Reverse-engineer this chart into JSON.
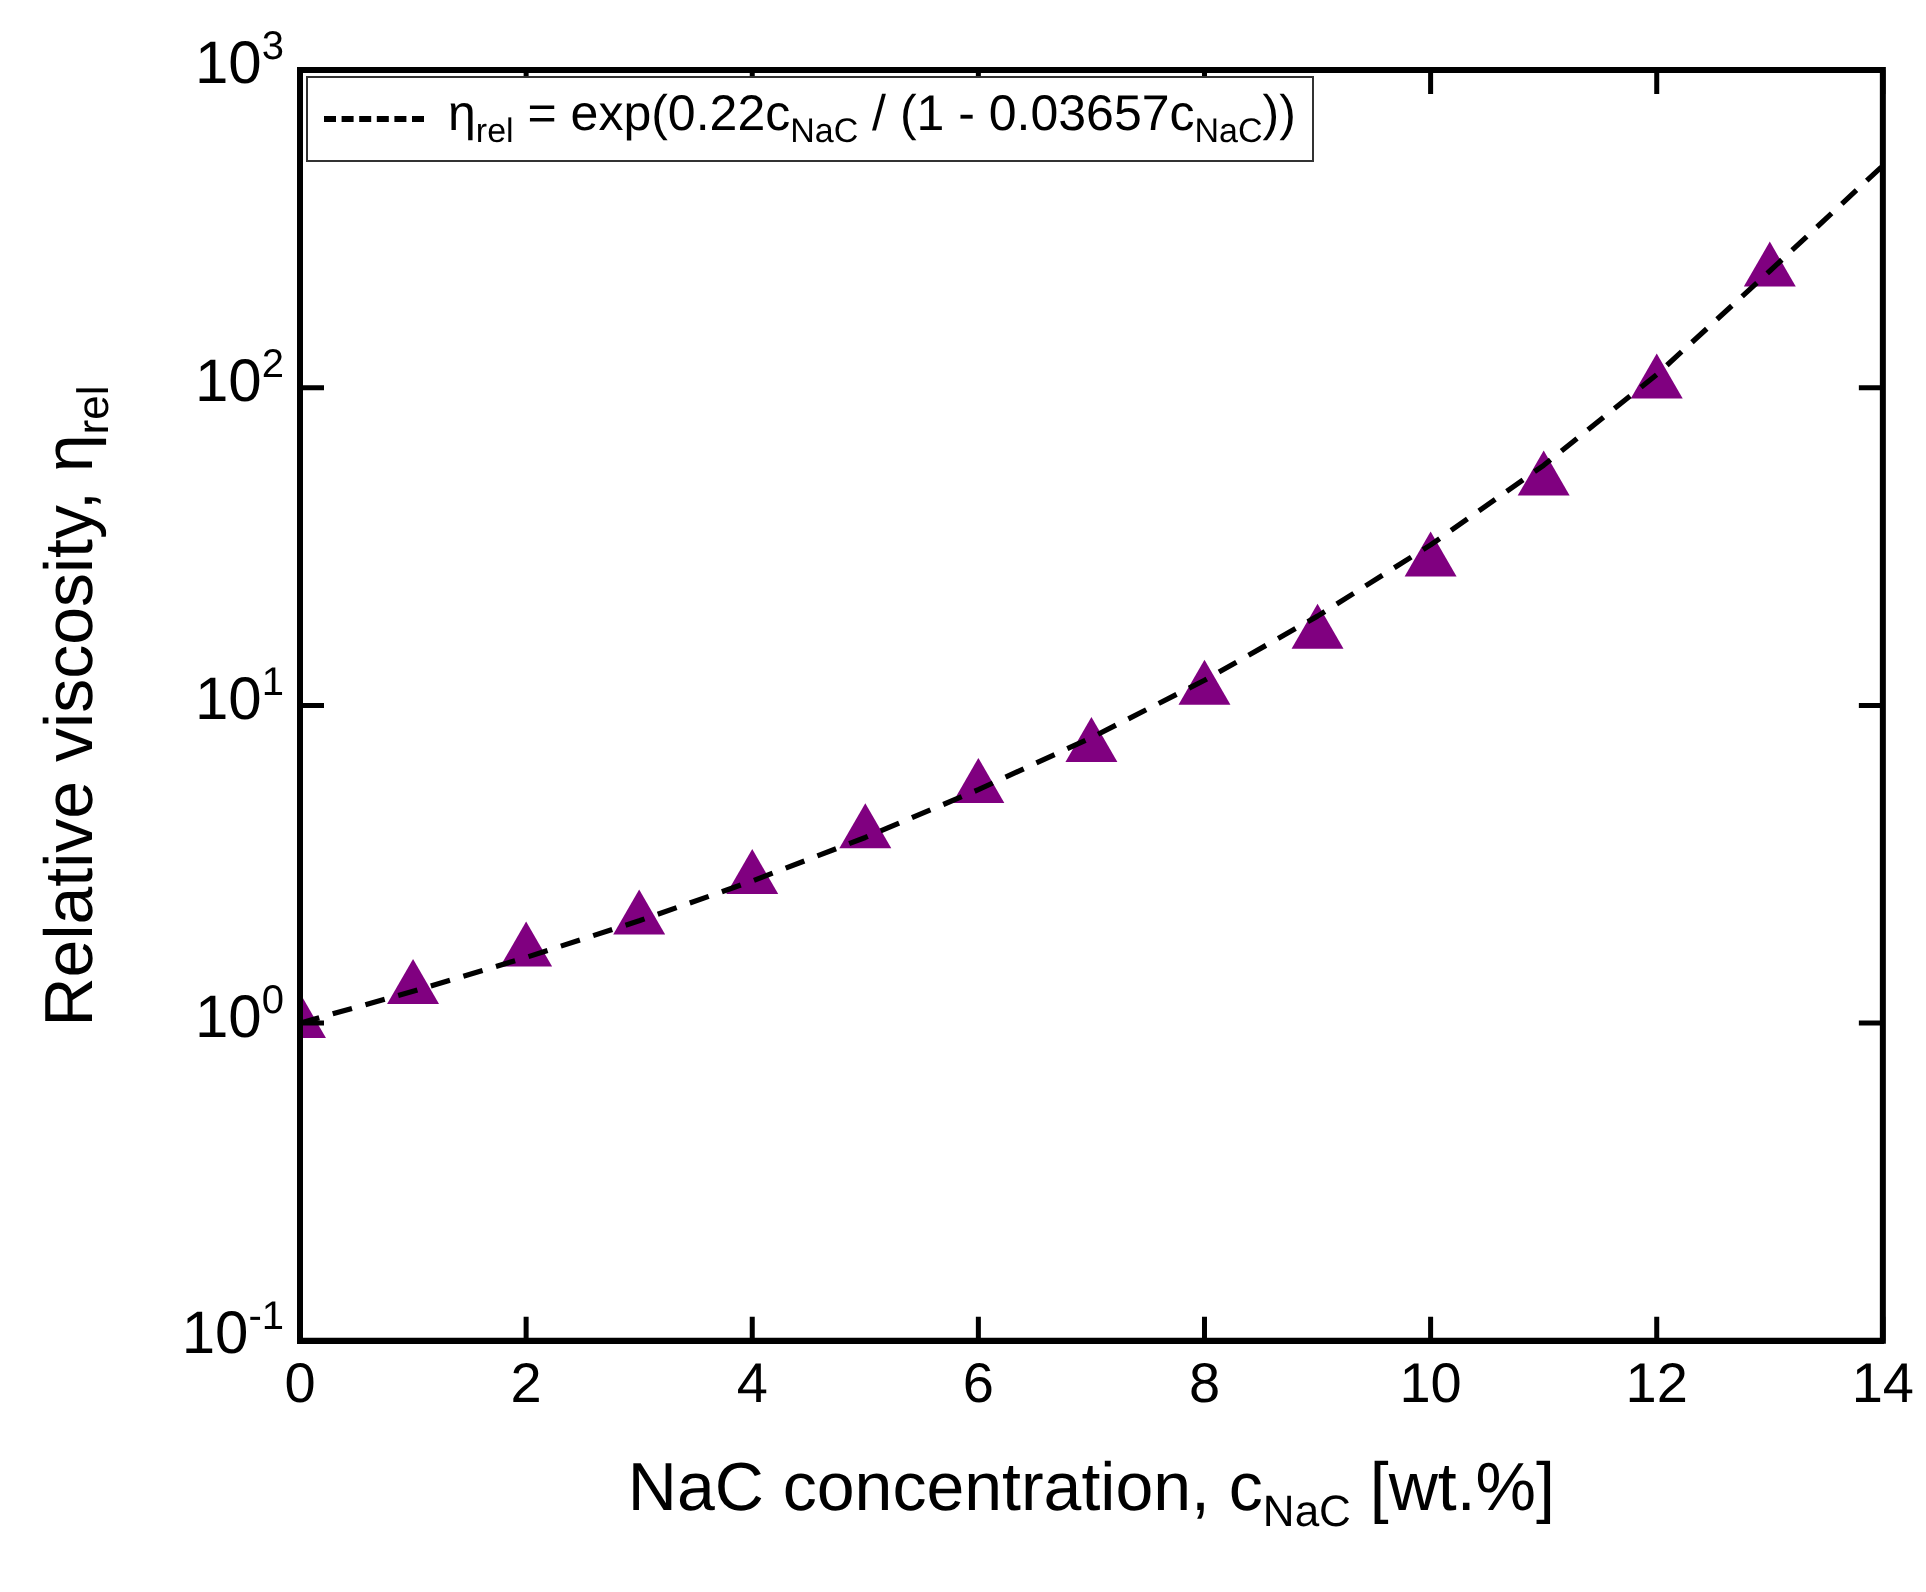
{
  "chart_data": {
    "type": "scatter",
    "xlabel": "NaC concentration, c$_{NaC}$ [wt.%]",
    "ylabel": "Relative viscosity, η$_{rel}$",
    "x": [
      0,
      1,
      2,
      3,
      4,
      5,
      6,
      7,
      8,
      9,
      10,
      11,
      12,
      13
    ],
    "series": [
      {
        "color": "#800080",
        "marker": "triangle",
        "values": [
          1.0,
          1.28,
          1.68,
          2.12,
          2.84,
          3.96,
          5.5,
          7.4,
          11.2,
          16.8,
          28.4,
          51,
          103,
          232
        ]
      },
      {
        "type": "line",
        "name": "η$_{rel}$ = exp(0.22c$_{NaC}$ / (1 - 0.03657c$_{NaC}$))",
        "color": "#000000",
        "line_style": "dashed",
        "marker": "none",
        "x": [
          0,
          1,
          2,
          3,
          4,
          5,
          6,
          7,
          8,
          9,
          10,
          11,
          12,
          13,
          14
        ],
        "values": [
          1.0,
          1.26,
          1.61,
          2.1,
          2.8,
          3.84,
          5.43,
          7.92,
          12,
          19.1,
          32,
          57,
          110,
          233,
          500
        ]
      }
    ],
    "xlim": [
      0,
      14
    ],
    "xticks": [
      0,
      2,
      4,
      6,
      8,
      10,
      12,
      14
    ],
    "ylim": [
      0.1,
      1000
    ],
    "yticks": [
      {
        "value": 0.1,
        "label": "10$^{-1}$"
      },
      {
        "value": 1,
        "label": "10$^{0}$"
      },
      {
        "value": 10,
        "label": "10$^{1}$"
      },
      {
        "value": 100,
        "label": "10$^{2}$"
      },
      {
        "value": 1000,
        "label": "10$^{3}$"
      }
    ],
    "log": "y",
    "legend": "top left",
    "grid": false
  }
}
